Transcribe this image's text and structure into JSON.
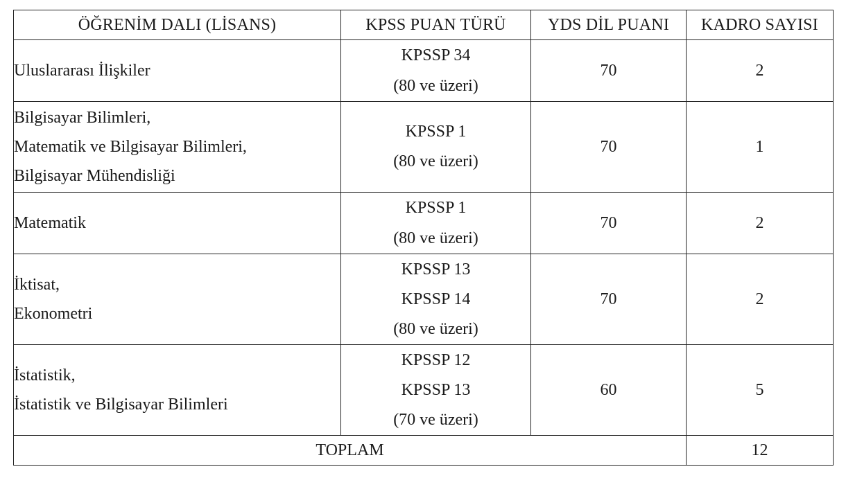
{
  "headers": {
    "department": "ÖĞRENİM DALI (LİSANS)",
    "score_type": "KPSS PUAN TÜRÜ",
    "yds_score": "YDS DİL PUANI",
    "quota": "KADRO SAYISI"
  },
  "rows": [
    {
      "departments": [
        "Uluslararası İlişkiler"
      ],
      "score_types": [
        "KPSSP 34",
        "(80 ve üzeri)"
      ],
      "yds": "70",
      "quota": "2"
    },
    {
      "departments": [
        "Bilgisayar Bilimleri,",
        "Matematik ve Bilgisayar Bilimleri,",
        "Bilgisayar Mühendisliği"
      ],
      "score_types": [
        "KPSSP 1",
        "(80 ve üzeri)"
      ],
      "yds": "70",
      "quota": "1"
    },
    {
      "departments": [
        "Matematik"
      ],
      "score_types": [
        "KPSSP 1",
        "(80 ve üzeri)"
      ],
      "yds": "70",
      "quota": "2"
    },
    {
      "departments": [
        "İktisat,",
        "Ekonometri"
      ],
      "score_types": [
        "KPSSP 13",
        "KPSSP 14",
        "(80 ve üzeri)"
      ],
      "yds": "70",
      "quota": "2"
    },
    {
      "departments": [
        "İstatistik,",
        "İstatistik ve Bilgisayar Bilimleri"
      ],
      "score_types": [
        "KPSSP 12",
        "KPSSP 13",
        "(70 ve üzeri)"
      ],
      "yds": "60",
      "quota": "5"
    }
  ],
  "total": {
    "label": "TOPLAM",
    "value": "12"
  }
}
